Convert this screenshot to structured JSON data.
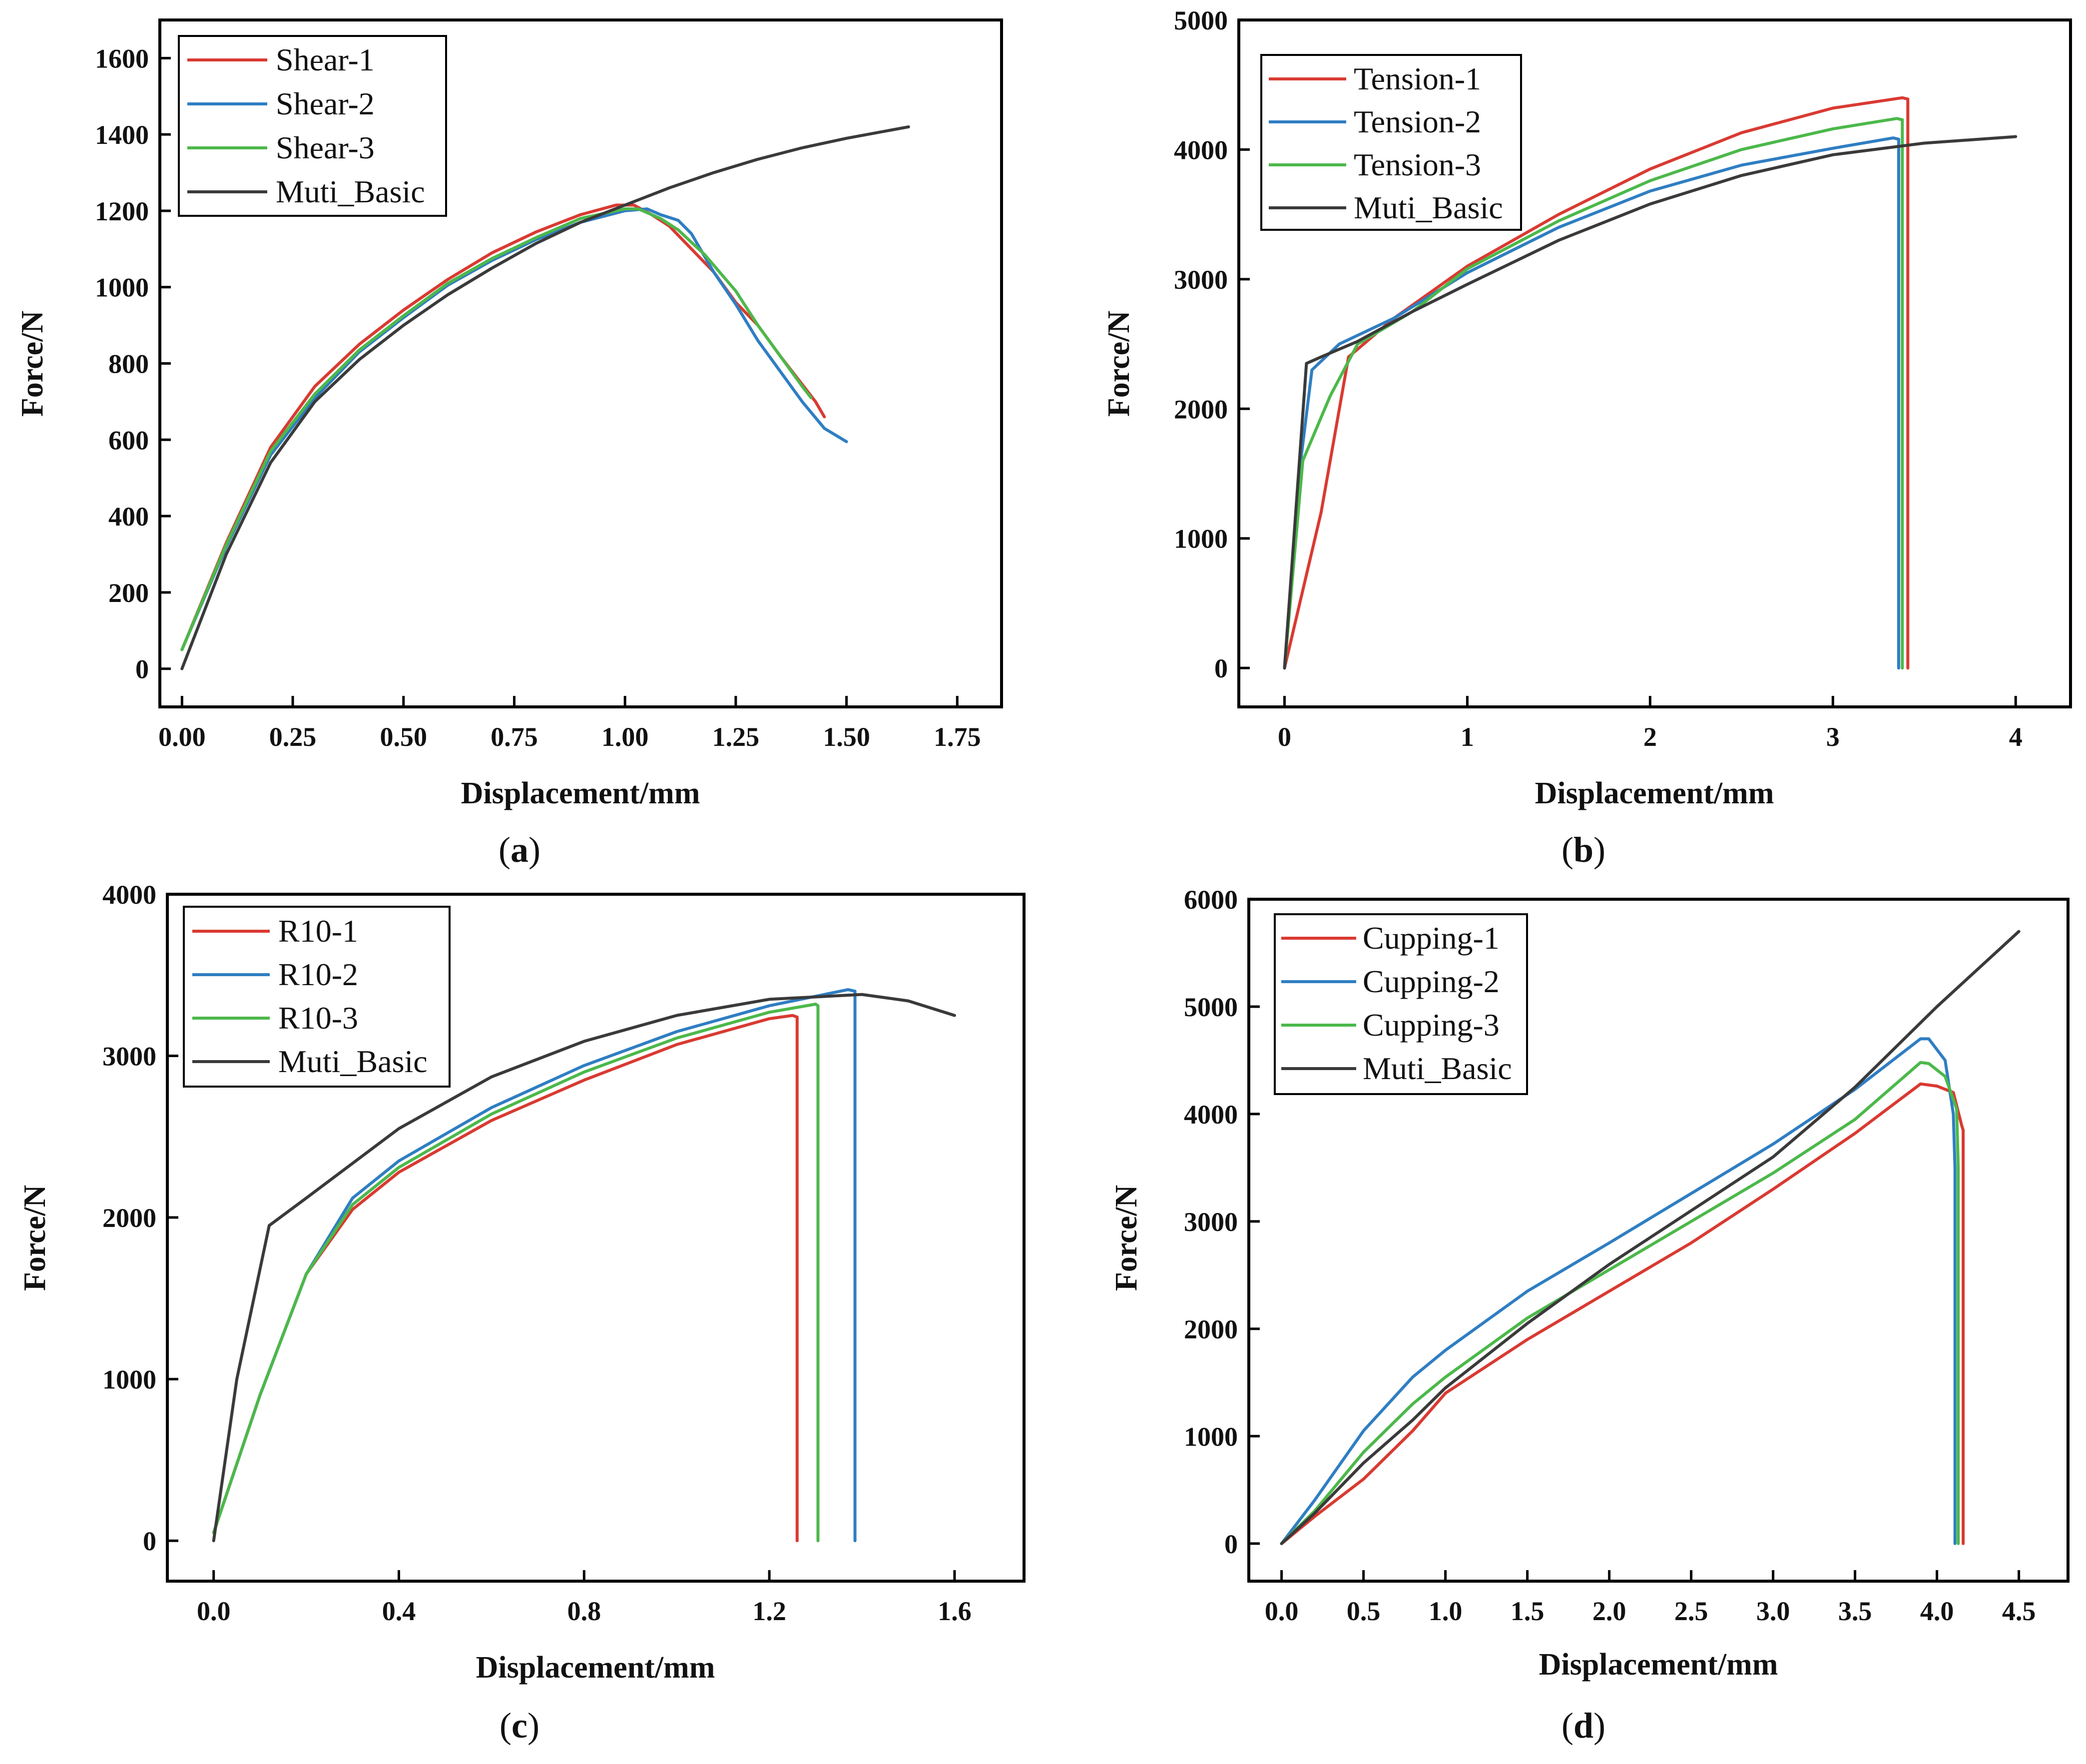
{
  "colors": {
    "red": "#d93a32",
    "blue": "#2f7ec2",
    "green": "#4cb84a",
    "black": "#3a3a3a",
    "axis": "#000000"
  },
  "chart_data": [
    {
      "id": "a",
      "caption_letter": "a",
      "type": "line",
      "xlabel": "Displacement/mm",
      "ylabel": "Force/N",
      "xlim": [
        -0.05,
        1.85
      ],
      "ylim": [
        -100,
        1700
      ],
      "xticks": [
        0.0,
        0.25,
        0.5,
        0.75,
        1.0,
        1.25,
        1.5,
        1.75
      ],
      "xticklabels": [
        "0.00",
        "0.25",
        "0.50",
        "0.75",
        "1.00",
        "1.25",
        "1.50",
        "1.75"
      ],
      "yticks": [
        0,
        200,
        400,
        600,
        800,
        1000,
        1200,
        1400,
        1600
      ],
      "yticklabels": [
        "0",
        "200",
        "400",
        "600",
        "800",
        "1000",
        "1200",
        "1400",
        "1600"
      ],
      "legend_position": "top-left",
      "series": [
        {
          "name": "Shear-1",
          "color": "red",
          "x": [
            0.0,
            0.1,
            0.2,
            0.3,
            0.4,
            0.5,
            0.6,
            0.7,
            0.8,
            0.9,
            0.98,
            1.02,
            1.06,
            1.1,
            1.15,
            1.2,
            1.25,
            1.3,
            1.35,
            1.4,
            1.43,
            1.45
          ],
          "y": [
            50,
            330,
            580,
            740,
            850,
            940,
            1020,
            1090,
            1145,
            1190,
            1215,
            1215,
            1190,
            1160,
            1100,
            1040,
            960,
            900,
            820,
            745,
            700,
            660
          ]
        },
        {
          "name": "Shear-2",
          "color": "blue",
          "x": [
            0.0,
            0.1,
            0.2,
            0.3,
            0.4,
            0.5,
            0.6,
            0.7,
            0.8,
            0.9,
            1.0,
            1.05,
            1.08,
            1.12,
            1.15,
            1.2,
            1.25,
            1.3,
            1.35,
            1.4,
            1.45,
            1.5
          ],
          "y": [
            50,
            320,
            560,
            710,
            830,
            920,
            1005,
            1070,
            1125,
            1170,
            1200,
            1205,
            1190,
            1175,
            1140,
            1040,
            955,
            860,
            780,
            700,
            630,
            595
          ]
        },
        {
          "name": "Shear-3",
          "color": "green",
          "x": [
            0.0,
            0.1,
            0.2,
            0.3,
            0.4,
            0.5,
            0.6,
            0.7,
            0.8,
            0.9,
            1.0,
            1.03,
            1.08,
            1.12,
            1.18,
            1.25,
            1.3,
            1.35,
            1.4,
            1.42
          ],
          "y": [
            50,
            325,
            570,
            720,
            835,
            925,
            1010,
            1075,
            1130,
            1180,
            1205,
            1205,
            1180,
            1150,
            1085,
            990,
            900,
            820,
            740,
            710
          ]
        },
        {
          "name": "Muti_Basic",
          "color": "black",
          "x": [
            0.0,
            0.1,
            0.2,
            0.3,
            0.4,
            0.5,
            0.6,
            0.7,
            0.8,
            0.9,
            1.0,
            1.1,
            1.2,
            1.3,
            1.4,
            1.5,
            1.64
          ],
          "y": [
            0,
            300,
            540,
            700,
            810,
            900,
            980,
            1050,
            1115,
            1170,
            1215,
            1260,
            1300,
            1335,
            1365,
            1390,
            1420
          ]
        }
      ]
    },
    {
      "id": "b",
      "caption_letter": "b",
      "type": "line",
      "xlabel": "Displacement/mm",
      "ylabel": "Force/N",
      "xlim": [
        -0.25,
        4.3
      ],
      "ylim": [
        -300,
        5000
      ],
      "xticks": [
        0,
        1,
        2,
        3,
        4
      ],
      "xticklabels": [
        "0",
        "1",
        "2",
        "3",
        "4"
      ],
      "yticks": [
        0,
        1000,
        2000,
        3000,
        4000,
        5000
      ],
      "yticklabels": [
        "0",
        "1000",
        "2000",
        "3000",
        "4000",
        "5000"
      ],
      "legend_position": "top-left",
      "series": [
        {
          "name": "Tension-1",
          "color": "red",
          "x": [
            0.0,
            0.2,
            0.35,
            0.6,
            1.0,
            1.5,
            2.0,
            2.5,
            3.0,
            3.38,
            3.41,
            3.41
          ],
          "y": [
            0,
            1200,
            2400,
            2700,
            3100,
            3500,
            3850,
            4130,
            4320,
            4400,
            4390,
            0
          ]
        },
        {
          "name": "Tension-2",
          "color": "blue",
          "x": [
            0.0,
            0.08,
            0.15,
            0.3,
            0.6,
            1.0,
            1.5,
            2.0,
            2.5,
            3.0,
            3.33,
            3.36,
            3.36
          ],
          "y": [
            0,
            1500,
            2300,
            2500,
            2700,
            3050,
            3400,
            3680,
            3880,
            4010,
            4090,
            4080,
            0
          ]
        },
        {
          "name": "Tension-3",
          "color": "green",
          "x": [
            0.0,
            0.1,
            0.25,
            0.4,
            0.7,
            1.0,
            1.5,
            2.0,
            2.5,
            3.0,
            3.35,
            3.38,
            3.38
          ],
          "y": [
            0,
            1600,
            2100,
            2500,
            2750,
            3080,
            3450,
            3760,
            4000,
            4160,
            4240,
            4230,
            0
          ]
        },
        {
          "name": "Muti_Basic",
          "color": "black",
          "x": [
            0.0,
            0.12,
            0.2,
            0.4,
            0.7,
            1.0,
            1.5,
            2.0,
            2.5,
            3.0,
            3.5,
            4.0
          ],
          "y": [
            0,
            2350,
            2400,
            2520,
            2750,
            2960,
            3300,
            3580,
            3800,
            3960,
            4050,
            4100
          ]
        }
      ]
    },
    {
      "id": "c",
      "caption_letter": "c",
      "type": "line",
      "xlabel": "Displacement/mm",
      "ylabel": "Force/N",
      "xlim": [
        -0.1,
        1.75
      ],
      "ylim": [
        -250,
        4000
      ],
      "xticks": [
        0.0,
        0.4,
        0.8,
        1.2,
        1.6
      ],
      "xticklabels": [
        "0.0",
        "0.4",
        "0.8",
        "1.2",
        "1.6"
      ],
      "yticks": [
        0,
        1000,
        2000,
        3000,
        4000
      ],
      "yticklabels": [
        "0",
        "1000",
        "2000",
        "3000",
        "4000"
      ],
      "legend_position": "top-left",
      "series": [
        {
          "name": "R10-1",
          "color": "red",
          "x": [
            0.0,
            0.1,
            0.2,
            0.3,
            0.4,
            0.6,
            0.8,
            1.0,
            1.2,
            1.25,
            1.26,
            1.26
          ],
          "y": [
            50,
            900,
            1650,
            2050,
            2280,
            2600,
            2850,
            3070,
            3230,
            3250,
            3240,
            0
          ]
        },
        {
          "name": "R10-2",
          "color": "blue",
          "x": [
            0.0,
            0.1,
            0.2,
            0.3,
            0.4,
            0.6,
            0.8,
            1.0,
            1.2,
            1.37,
            1.385,
            1.385
          ],
          "y": [
            50,
            900,
            1650,
            2120,
            2350,
            2680,
            2940,
            3150,
            3310,
            3410,
            3400,
            0
          ]
        },
        {
          "name": "R10-3",
          "color": "green",
          "x": [
            0.0,
            0.1,
            0.2,
            0.3,
            0.4,
            0.6,
            0.8,
            1.0,
            1.2,
            1.3,
            1.305,
            1.305
          ],
          "y": [
            50,
            900,
            1650,
            2080,
            2310,
            2640,
            2900,
            3110,
            3270,
            3320,
            3310,
            0
          ]
        },
        {
          "name": "Muti_Basic",
          "color": "black",
          "x": [
            0.0,
            0.05,
            0.12,
            0.2,
            0.4,
            0.6,
            0.8,
            1.0,
            1.2,
            1.4,
            1.5,
            1.6
          ],
          "y": [
            0,
            1000,
            1950,
            2120,
            2550,
            2870,
            3090,
            3250,
            3350,
            3380,
            3340,
            3250
          ]
        }
      ]
    },
    {
      "id": "d",
      "caption_letter": "d",
      "type": "line",
      "xlabel": "Displacement/mm",
      "ylabel": "Force/N",
      "xlim": [
        -0.2,
        4.8
      ],
      "ylim": [
        -350,
        6000
      ],
      "xticks": [
        0.0,
        0.5,
        1.0,
        1.5,
        2.0,
        2.5,
        3.0,
        3.5,
        4.0,
        4.5
      ],
      "xticklabels": [
        "0.0",
        "0.5",
        "1.0",
        "1.5",
        "2.0",
        "2.5",
        "3.0",
        "3.5",
        "4.0",
        "4.5"
      ],
      "yticks": [
        0,
        1000,
        2000,
        3000,
        4000,
        5000,
        6000
      ],
      "yticklabels": [
        "0",
        "1000",
        "2000",
        "3000",
        "4000",
        "5000",
        "6000"
      ],
      "legend_position": "top-left",
      "series": [
        {
          "name": "Cupping-1",
          "color": "red",
          "x": [
            0.0,
            0.2,
            0.5,
            0.8,
            1.0,
            1.5,
            2.0,
            2.5,
            3.0,
            3.5,
            3.9,
            4.0,
            4.1,
            4.15,
            4.16,
            4.16
          ],
          "y": [
            0,
            250,
            600,
            1050,
            1400,
            1900,
            2350,
            2800,
            3300,
            3820,
            4280,
            4260,
            4200,
            3900,
            3850,
            0
          ]
        },
        {
          "name": "Cupping-2",
          "color": "blue",
          "x": [
            0.0,
            0.2,
            0.5,
            0.8,
            1.0,
            1.5,
            2.0,
            2.5,
            3.0,
            3.5,
            3.9,
            3.95,
            4.05,
            4.1,
            4.11,
            4.11
          ],
          "y": [
            0,
            400,
            1050,
            1550,
            1800,
            2350,
            2800,
            3260,
            3720,
            4230,
            4700,
            4700,
            4500,
            4000,
            3500,
            0
          ]
        },
        {
          "name": "Cupping-3",
          "color": "green",
          "x": [
            0.0,
            0.2,
            0.5,
            0.8,
            1.0,
            1.5,
            2.0,
            2.5,
            3.0,
            3.5,
            3.9,
            3.95,
            4.05,
            4.12,
            4.13,
            4.13
          ],
          "y": [
            0,
            300,
            850,
            1300,
            1550,
            2100,
            2550,
            3000,
            3450,
            3950,
            4480,
            4470,
            4350,
            4050,
            3500,
            0
          ]
        },
        {
          "name": "Muti_Basic",
          "color": "black",
          "x": [
            0.0,
            0.2,
            0.5,
            0.8,
            1.0,
            1.5,
            2.0,
            2.5,
            3.0,
            3.5,
            4.0,
            4.5
          ],
          "y": [
            0,
            280,
            750,
            1150,
            1450,
            2050,
            2600,
            3100,
            3600,
            4250,
            5000,
            5700
          ]
        }
      ]
    }
  ]
}
